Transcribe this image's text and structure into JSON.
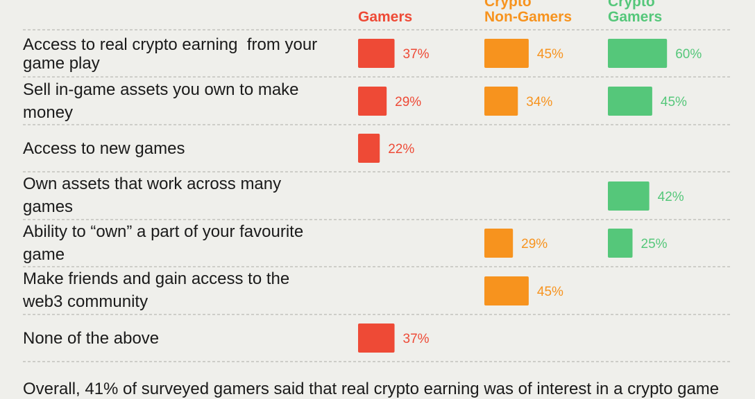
{
  "chart_data": {
    "type": "bar",
    "title": "",
    "xlabel": "",
    "ylabel": "",
    "xlim": [
      0,
      100
    ],
    "grid": false,
    "legend": "column headers on top",
    "categories": [
      "Access to real crypto earning  from your game play",
      "Sell in-game assets you own to make money",
      "Access to new games",
      "Own assets that work across many games",
      "Ability to “own” a part of your favourite game",
      "Make friends and gain access to the web3 community",
      "None of the above"
    ],
    "series": [
      {
        "name": "Gamers",
        "color": "#ee4a36",
        "values": [
          37,
          29,
          22,
          null,
          null,
          null,
          37
        ],
        "labels": [
          "37%",
          "29%",
          "22%",
          "",
          "",
          "",
          "37%"
        ]
      },
      {
        "name": "Crypto Non-Gamers",
        "color": "#f7931e",
        "values": [
          45,
          34,
          null,
          null,
          29,
          45,
          null
        ],
        "labels": [
          "45%",
          "34%",
          "",
          "",
          "29%",
          "45%",
          ""
        ]
      },
      {
        "name": "Crypto Gamers",
        "color": "#55c77a",
        "values": [
          60,
          45,
          null,
          42,
          25,
          null,
          null
        ],
        "labels": [
          "60%",
          "45%",
          "",
          "42%",
          "25%",
          "",
          ""
        ]
      }
    ]
  },
  "headers": {
    "gamers": {
      "line1": "Gamers"
    },
    "non_gamers": {
      "line1": "Crypto",
      "line2": "Non-Gamers"
    },
    "crypto_gamers": {
      "line1": "Crypto",
      "line2": "Gamers"
    }
  },
  "rows": [
    {
      "line1": "Access to real crypto earning  from your",
      "line2": "game play"
    },
    {
      "line1": "Sell in-game assets you own to make",
      "line2": "money"
    },
    {
      "line1": "Access to new games"
    },
    {
      "line1": "Own assets that work across many",
      "line2": "games"
    },
    {
      "line1": "Ability to “own” a part of your favourite",
      "line2": "game"
    },
    {
      "line1": "Make friends and gain access to the",
      "line2": "web3 community"
    },
    {
      "line1": "None of the above"
    }
  ],
  "footer": {
    "text": "Overall, 41% of surveyed gamers said that real crypto earning was of interest in a crypto game"
  }
}
